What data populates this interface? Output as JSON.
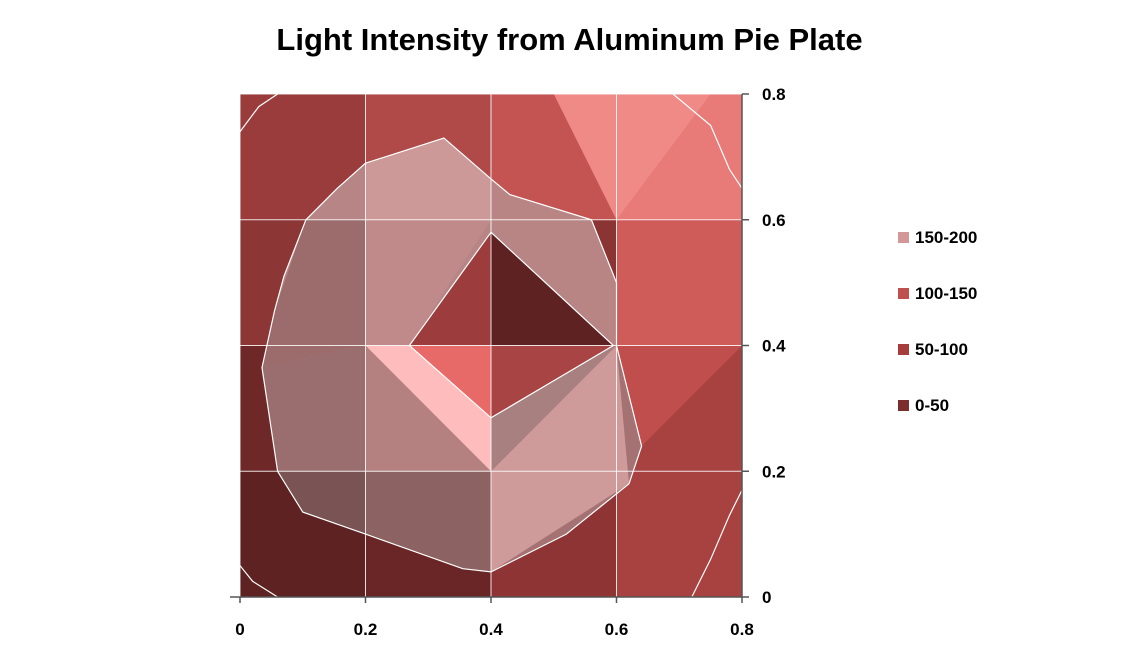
{
  "chart_data": {
    "type": "heatmap",
    "title": "Light Intensity from Aluminum Pie Plate",
    "xlabel": "",
    "ylabel": "",
    "x": [
      0,
      0.2,
      0.4,
      0.6,
      0.8
    ],
    "y": [
      0,
      0.2,
      0.4,
      0.6,
      0.8
    ],
    "xlim": [
      0,
      0.8
    ],
    "ylim": [
      0,
      0.8
    ],
    "x_ticks": [
      "0",
      "0.2",
      "0.4",
      "0.6",
      "0.8"
    ],
    "y_ticks": [
      "0",
      "0.2",
      "0.4",
      "0.6",
      "0.8"
    ],
    "y_axis_position": "right",
    "grid": true,
    "legend_position": "right",
    "bands": [
      {
        "name": "150-200",
        "color": "#d29898"
      },
      {
        "name": "100-150",
        "color": "#c0504d"
      },
      {
        "name": "50-100",
        "color": "#a63c3c"
      },
      {
        "name": "0-50",
        "color": "#7a2e2e"
      }
    ]
  }
}
